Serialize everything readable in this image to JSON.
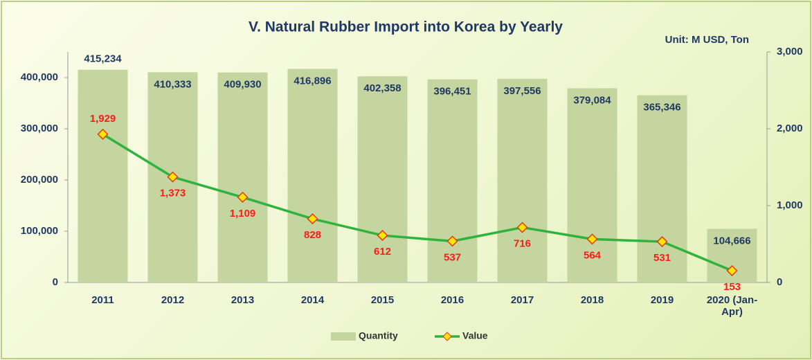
{
  "chart_data": {
    "type": "bar_line",
    "title": "V. Natural Rubber Import into Korea by Yearly",
    "annotation": "Unit: M USD, Ton",
    "categories": [
      "2011",
      "2012",
      "2013",
      "2014",
      "2015",
      "2016",
      "2017",
      "2018",
      "2019",
      "2020 (Jan-Apr)"
    ],
    "series": [
      {
        "name": "Quantity",
        "type": "bar",
        "color": "#c4d59f",
        "values": [
          415234,
          410333,
          409930,
          416896,
          402358,
          396451,
          397556,
          379084,
          365346,
          104666
        ],
        "value_labels": [
          "415,234",
          "410,333",
          "409,930",
          "416,896",
          "402,358",
          "396,451",
          "397,556",
          "379,084",
          "365,346",
          "104,666"
        ]
      },
      {
        "name": "Value",
        "type": "line",
        "axis": "y2",
        "color": "#2eb33c",
        "values": [
          1929,
          1373,
          1109,
          828,
          612,
          537,
          716,
          564,
          531,
          153
        ],
        "value_labels": [
          "1,929",
          "1,373",
          "1,109",
          "828",
          "612",
          "537",
          "716",
          "564",
          "531",
          "153"
        ]
      }
    ],
    "ylim": [
      0,
      450000
    ],
    "yticks": [
      0,
      {
        "value": 100000,
        "label": "100,000"
      },
      {
        "value": 200000,
        "label": "200,000"
      },
      {
        "value": 300000,
        "label": "300,000"
      },
      {
        "value": 400000,
        "label": "400,000"
      }
    ],
    "y2lim": [
      0,
      3000
    ],
    "y2ticks": [
      0,
      {
        "value": 1000,
        "label": "1,000"
      },
      {
        "value": 2000,
        "label": "2,000"
      },
      {
        "value": 3000,
        "label": "3,000"
      }
    ],
    "grid": false,
    "legend": "bottom"
  }
}
